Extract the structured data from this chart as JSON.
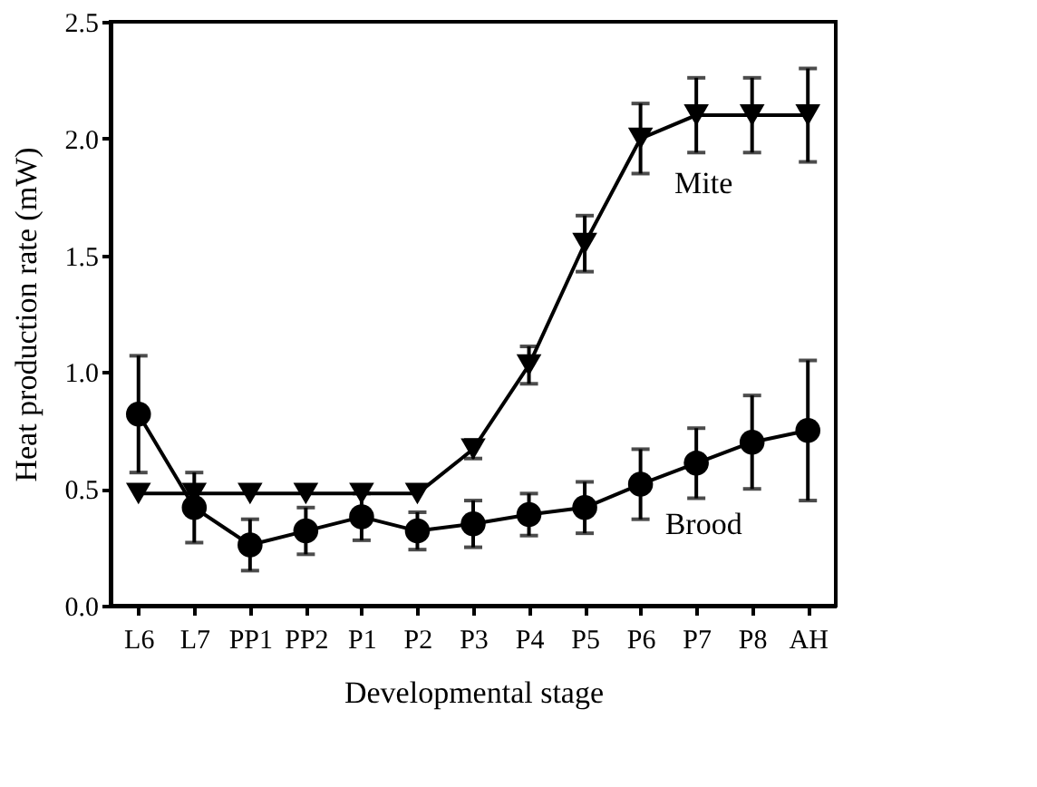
{
  "chart_data": {
    "type": "line",
    "xlabel": "Developmental stage",
    "ylabel": "Heat production rate (mW)",
    "categories": [
      "L6",
      "L7",
      "PP1",
      "PP2",
      "P1",
      "P2",
      "P3",
      "P4",
      "P5",
      "P6",
      "P7",
      "P8",
      "AH"
    ],
    "ylim": [
      0,
      2.5
    ],
    "yticks": [
      {
        "value": 0,
        "label": "0.0"
      },
      {
        "value": 0.5,
        "label": "0.5"
      },
      {
        "value": 1,
        "label": "1.0"
      },
      {
        "value": 1.5,
        "label": "1.5"
      },
      {
        "value": 2,
        "label": "2.0"
      },
      {
        "value": 2.5,
        "label": "2.5"
      }
    ],
    "grid": false,
    "line_style": "solid",
    "series": [
      {
        "name": "Mite",
        "color": "#000000",
        "marker": "triangle",
        "values": [
          0.48,
          0.48,
          0.48,
          0.48,
          0.48,
          0.48,
          0.67,
          1.03,
          1.55,
          2.0,
          2.1,
          2.1,
          2.1
        ],
        "errors": [
          null,
          null,
          null,
          null,
          null,
          null,
          0.04,
          0.08,
          0.12,
          0.15,
          0.16,
          0.16,
          0.2
        ]
      },
      {
        "name": "Brood",
        "color": "#000000",
        "marker": "circle",
        "values": [
          0.82,
          0.42,
          0.26,
          0.32,
          0.38,
          0.32,
          0.35,
          0.39,
          0.42,
          0.52,
          0.61,
          0.7,
          0.75
        ],
        "errors": [
          0.25,
          0.15,
          0.11,
          0.1,
          0.1,
          0.08,
          0.1,
          0.09,
          0.11,
          0.15,
          0.15,
          0.2,
          0.3
        ]
      }
    ]
  }
}
